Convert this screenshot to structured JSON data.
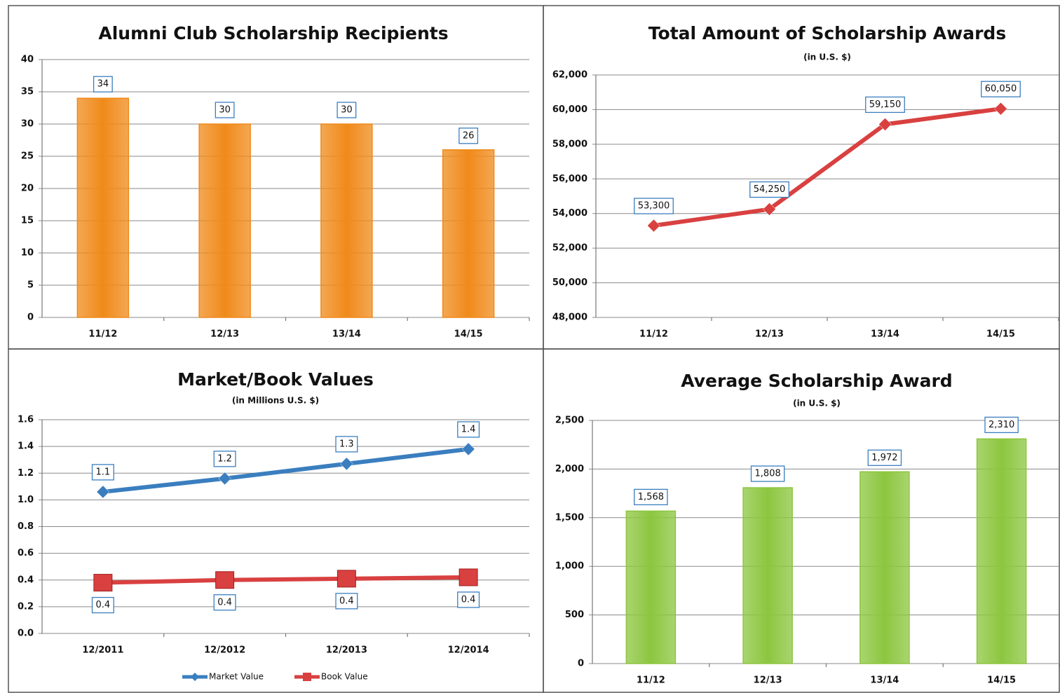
{
  "chart_data": [
    {
      "type": "bar",
      "title": "Alumni Club Scholarship Recipients",
      "categories": [
        "11/12",
        "12/13",
        "13/14",
        "14/15"
      ],
      "values": [
        34,
        30,
        30,
        26
      ],
      "color": "#f08a1a",
      "ylim": [
        0,
        40
      ],
      "yticks": [
        0,
        5,
        10,
        15,
        20,
        25,
        30,
        35,
        40
      ],
      "grid": true
    },
    {
      "type": "line",
      "title": "Total Amount of Scholarship Awards",
      "subtitle": "(in U.S. $)",
      "categories": [
        "11/12",
        "12/13",
        "13/14",
        "14/15"
      ],
      "series": [
        {
          "color": "#d94040",
          "marker": "diamond",
          "values": [
            53300,
            54250,
            59150,
            60050
          ],
          "value_labels": [
            "53,300",
            "54,250",
            "59,150",
            "60,050"
          ]
        }
      ],
      "ylim": [
        48000,
        62000
      ],
      "yticks": [
        {
          "value": 48000,
          "label": "48,000"
        },
        {
          "value": 50000,
          "label": "50,000"
        },
        {
          "value": 52000,
          "label": "52,000"
        },
        {
          "value": 54000,
          "label": "54,000"
        },
        {
          "value": 56000,
          "label": "56,000"
        },
        {
          "value": 58000,
          "label": "58,000"
        },
        {
          "value": 60000,
          "label": "60,000"
        },
        {
          "value": 62000,
          "label": "62,000"
        }
      ],
      "grid": true
    },
    {
      "type": "line",
      "title": "Market/Book Values",
      "subtitle": "(in Millions U.S. $)",
      "categories": [
        "12/2011",
        "12/2012",
        "12/2013",
        "12/2014"
      ],
      "series": [
        {
          "name": "Market Value",
          "color": "#3a7ebf",
          "marker": "diamond",
          "values": [
            1.06,
            1.16,
            1.27,
            1.38
          ],
          "value_labels": [
            "1.1",
            "1.2",
            "1.3",
            "1.4"
          ]
        },
        {
          "name": "Book Value",
          "color": "#d94040",
          "marker": "square",
          "values": [
            0.38,
            0.4,
            0.41,
            0.42
          ],
          "value_labels": [
            "0.4",
            "0.4",
            "0.4",
            "0.4"
          ]
        }
      ],
      "ylim": [
        0,
        1.6
      ],
      "yticks": [
        {
          "value": 0,
          "label": "0.0"
        },
        0.2,
        0.4,
        0.6,
        0.8,
        {
          "value": 1,
          "label": "1.0"
        },
        1.2,
        1.4,
        1.6
      ],
      "grid": true,
      "legend": "bottom"
    },
    {
      "type": "bar",
      "title": "Average Scholarship Award",
      "subtitle": "(in U.S. $)",
      "categories": [
        "11/12",
        "12/13",
        "13/14",
        "14/15"
      ],
      "values": [
        1568,
        1808,
        1972,
        2310
      ],
      "value_labels": [
        "1,568",
        "1,808",
        "1,972",
        "2,310"
      ],
      "color": "#8cc63f",
      "ylim": [
        0,
        2500
      ],
      "yticks": [
        0,
        500,
        {
          "value": 1000,
          "label": "1,000"
        },
        {
          "value": 1500,
          "label": "1,500"
        },
        {
          "value": 2000,
          "label": "2,000"
        },
        {
          "value": 2500,
          "label": "2,500"
        }
      ],
      "grid": true
    }
  ]
}
